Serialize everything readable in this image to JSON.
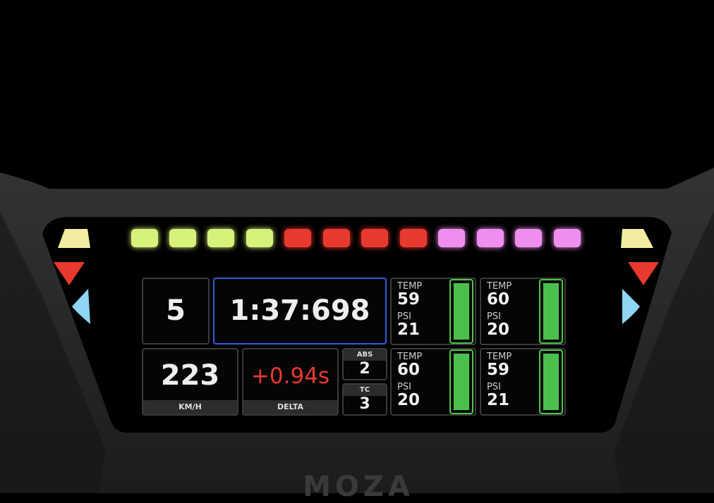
{
  "brand": "MOZA",
  "rev_leds": [
    {
      "color": "#d6f27a"
    },
    {
      "color": "#d6f27a"
    },
    {
      "color": "#d6f27a"
    },
    {
      "color": "#d6f27a"
    },
    {
      "color": "#e8392f"
    },
    {
      "color": "#e8392f"
    },
    {
      "color": "#e8392f"
    },
    {
      "color": "#e8392f"
    },
    {
      "color": "#f08ef0"
    },
    {
      "color": "#f08ef0"
    },
    {
      "color": "#f08ef0"
    },
    {
      "color": "#f08ef0"
    }
  ],
  "side_leds": {
    "top": "#f2eda0",
    "middle": "#e8392f",
    "bottom": "#8fd4f2"
  },
  "dash": {
    "gear": "5",
    "lap_time": "1:37:698",
    "speed": "223",
    "speed_unit": "KM/H",
    "delta": "+0.94s",
    "delta_label": "DELTA",
    "delta_color": "#e8392f",
    "abs_label": "ABS",
    "abs": "2",
    "tc_label": "TC",
    "tc": "3",
    "tires": [
      {
        "temp_label": "TEMP",
        "temp": "59",
        "psi_label": "PSI",
        "psi": "21"
      },
      {
        "temp_label": "TEMP",
        "temp": "60",
        "psi_label": "PSI",
        "psi": "20"
      },
      {
        "temp_label": "TEMP",
        "temp": "60",
        "psi_label": "PSI",
        "psi": "20"
      },
      {
        "temp_label": "TEMP",
        "temp": "59",
        "psi_label": "PSI",
        "psi": "21"
      }
    ]
  }
}
